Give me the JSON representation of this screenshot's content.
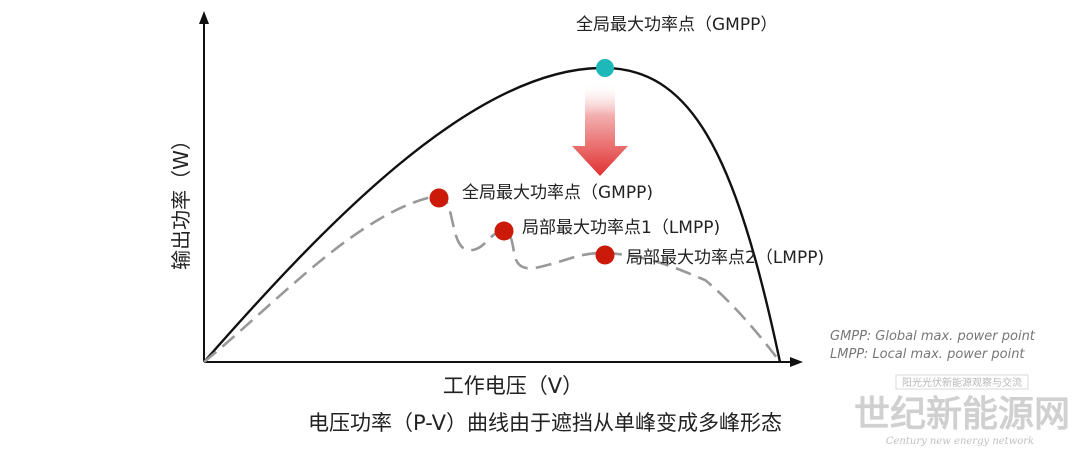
{
  "axes": {
    "y_label": "输出功率（W）",
    "x_label": "工作电压（V）"
  },
  "caption": "电压功率（P-V）曲线由于遮挡从单峰变成多峰形态",
  "points": {
    "gmpp_top": "全局最大功率点（GMPP）",
    "gmpp_shaded": "全局最大功率点（GMPP)",
    "lmpp1": "局部最大功率点1（LMPP)",
    "lmpp2": "局部最大功率点2（LMPP)"
  },
  "legend": {
    "line1": "GMPP: Global max. power point",
    "line2": "LMPP: Local max. power point"
  },
  "watermark": {
    "top": "阳光光伏新能源观察与交流",
    "main": "世纪新能源网",
    "sub": "Century new energy network"
  },
  "colors": {
    "curve": "#111111",
    "dashed_curve": "#999999",
    "gmpp_unshaded": "#1fb8b8",
    "shaded_points": "#cc1a0a",
    "arrow": "#e03030"
  }
}
